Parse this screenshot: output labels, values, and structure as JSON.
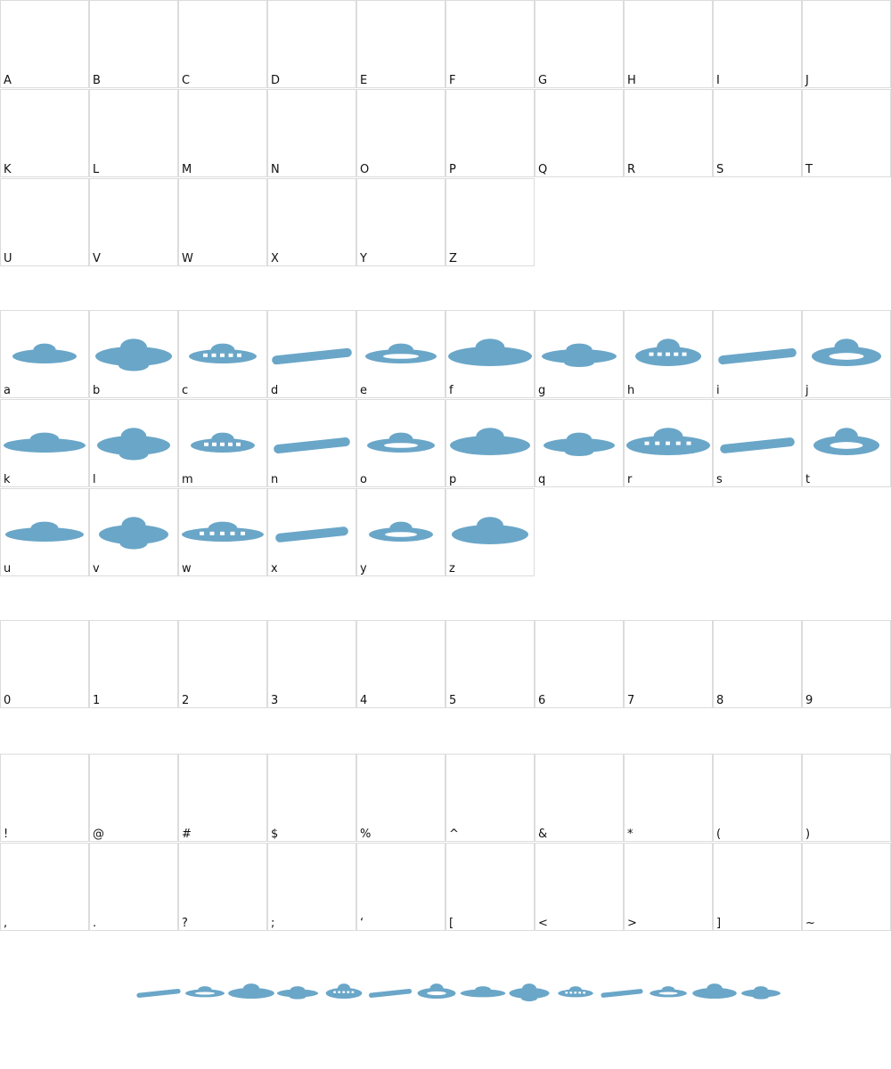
{
  "sections": [
    {
      "rows": [
        [
          "A",
          "B",
          "C",
          "D",
          "E",
          "F",
          "G",
          "H",
          "I",
          "J"
        ],
        [
          "K",
          "L",
          "M",
          "N",
          "O",
          "P",
          "Q",
          "R",
          "S",
          "T"
        ],
        [
          "U",
          "V",
          "W",
          "X",
          "Y",
          "Z"
        ]
      ]
    },
    {
      "rows": [
        [
          "a",
          "b",
          "c",
          "d",
          "e",
          "f",
          "g",
          "h",
          "i",
          "j"
        ],
        [
          "k",
          "l",
          "m",
          "n",
          "o",
          "p",
          "q",
          "r",
          "s",
          "t"
        ],
        [
          "u",
          "v",
          "w",
          "x",
          "y",
          "z"
        ]
      ]
    },
    {
      "rows": [
        [
          "0",
          "1",
          "2",
          "3",
          "4",
          "5",
          "6",
          "7",
          "8",
          "9"
        ]
      ]
    },
    {
      "rows": [
        [
          "!",
          "@",
          "#",
          "$",
          "%",
          "^",
          "&",
          "*",
          "(",
          ")"
        ],
        [
          ",",
          ".",
          "?",
          ";",
          "‘",
          "[",
          "<",
          ">",
          "]",
          "~"
        ]
      ]
    }
  ]
}
